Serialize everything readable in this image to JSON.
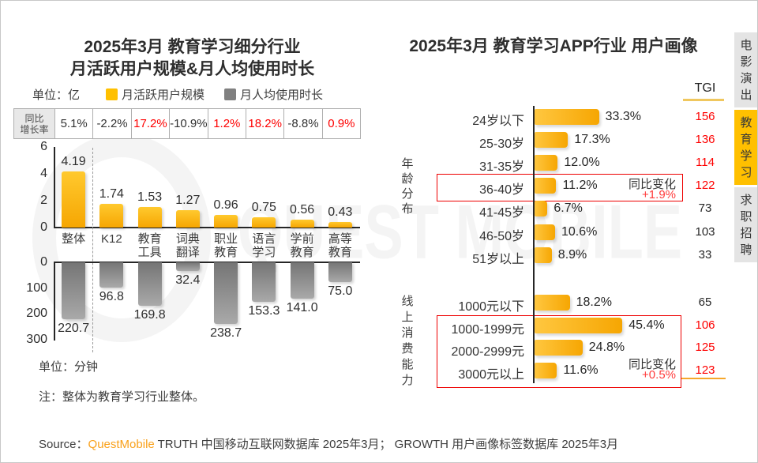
{
  "page": {
    "watermark": "QUEST MOBILE",
    "source_prefix": "Source：",
    "source_brand": "QuestMobile",
    "source_rest": " TRUTH 中国移动互联网数据库 2025年3月； GROWTH 用户画像标签数据库 2025年3月",
    "accent_yellow": "#FFC000",
    "accent_red": "#FF0000"
  },
  "tabs": [
    {
      "label": "电影演出",
      "active": false
    },
    {
      "label": "教育学习",
      "active": true
    },
    {
      "label": "求职招聘",
      "active": false
    }
  ],
  "chart_data": [
    {
      "type": "bar",
      "title_line1": "2025年3月 教育学习细分行业",
      "title_line2": "月活跃用户规模&月人均使用时长",
      "unit_top": "单位：亿",
      "unit_bottom": "单位：分钟",
      "note": "注：整体为教育学习行业整体。",
      "legend": [
        {
          "label": "月活跃用户规模",
          "color": "#FFC000"
        },
        {
          "label": "月人均使用时长",
          "color": "#808080"
        }
      ],
      "yoy": {
        "header": [
          "同比",
          "增长率"
        ],
        "values": [
          "5.1%",
          "-2.2%",
          "17.2%",
          "-10.9%",
          "1.2%",
          "18.2%",
          "-8.8%",
          "0.9%"
        ],
        "red": [
          false,
          false,
          true,
          false,
          true,
          true,
          false,
          true
        ]
      },
      "categories": [
        [
          "整体"
        ],
        [
          "K12"
        ],
        [
          "教育",
          "工具"
        ],
        [
          "词典",
          "翻译"
        ],
        [
          "职业",
          "教育"
        ],
        [
          "语言",
          "学习"
        ],
        [
          "学前",
          "教育"
        ],
        [
          "高等",
          "教育"
        ]
      ],
      "series": [
        {
          "name": "月活跃用户规模",
          "unit": "亿",
          "values": [
            4.19,
            1.74,
            1.53,
            1.27,
            0.96,
            0.75,
            0.56,
            0.43
          ],
          "labels": [
            "4.19",
            "1.74",
            "1.53",
            "1.27",
            "0.96",
            "0.75",
            "0.56",
            "0.43"
          ],
          "ylim": [
            0,
            6
          ],
          "yticks": [
            0,
            2,
            4,
            6
          ]
        },
        {
          "name": "月人均使用时长",
          "unit": "分钟",
          "values": [
            220.7,
            96.8,
            169.8,
            32.4,
            238.7,
            153.3,
            141.0,
            75.0
          ],
          "labels": [
            "220.7",
            "96.8",
            "169.8",
            "32.4",
            "238.7",
            "153.3",
            "141.0",
            "75.0"
          ],
          "ylim": [
            0,
            300
          ],
          "yticks": [
            0,
            100,
            200,
            300
          ],
          "inverted": true
        }
      ]
    },
    {
      "type": "bar",
      "title": "2025年3月 教育学习APP行业 用户画像",
      "tgi_header": "TGI",
      "groups": [
        {
          "name": "年龄分布",
          "rows": [
            {
              "label": "24岁以下",
              "pct": 33.3,
              "pct_label": "33.3%",
              "tgi": "156",
              "tgi_red": true
            },
            {
              "label": "25-30岁",
              "pct": 17.3,
              "pct_label": "17.3%",
              "tgi": "136",
              "tgi_red": true
            },
            {
              "label": "31-35岁",
              "pct": 12.0,
              "pct_label": "12.0%",
              "tgi": "114",
              "tgi_red": true
            },
            {
              "label": "36-40岁",
              "pct": 11.2,
              "pct_label": "11.2%",
              "tgi": "122",
              "tgi_red": true
            },
            {
              "label": "41-45岁",
              "pct": 6.7,
              "pct_label": "6.7%",
              "tgi": "73",
              "tgi_red": false
            },
            {
              "label": "46-50岁",
              "pct": 10.6,
              "pct_label": "10.6%",
              "tgi": "103",
              "tgi_red": false
            },
            {
              "label": "51岁以上",
              "pct": 8.9,
              "pct_label": "8.9%",
              "tgi": "33",
              "tgi_red": false
            }
          ],
          "highlight": {
            "rows": [
              "36-40岁"
            ],
            "note": "同比变化",
            "change": "+1.9%"
          }
        },
        {
          "name": "线上消费能力",
          "rows": [
            {
              "label": "1000元以下",
              "pct": 18.2,
              "pct_label": "18.2%",
              "tgi": "65",
              "tgi_red": false
            },
            {
              "label": "1000-1999元",
              "pct": 45.4,
              "pct_label": "45.4%",
              "tgi": "106",
              "tgi_red": true
            },
            {
              "label": "2000-2999元",
              "pct": 24.8,
              "pct_label": "24.8%",
              "tgi": "125",
              "tgi_red": true
            },
            {
              "label": "3000元以上",
              "pct": 11.6,
              "pct_label": "11.6%",
              "tgi": "123",
              "tgi_red": true
            }
          ],
          "highlight": {
            "rows": [
              "1000-1999元",
              "2000-2999元",
              "3000元以上"
            ],
            "note": "同比变化",
            "change": "+0.5%"
          }
        }
      ]
    }
  ]
}
